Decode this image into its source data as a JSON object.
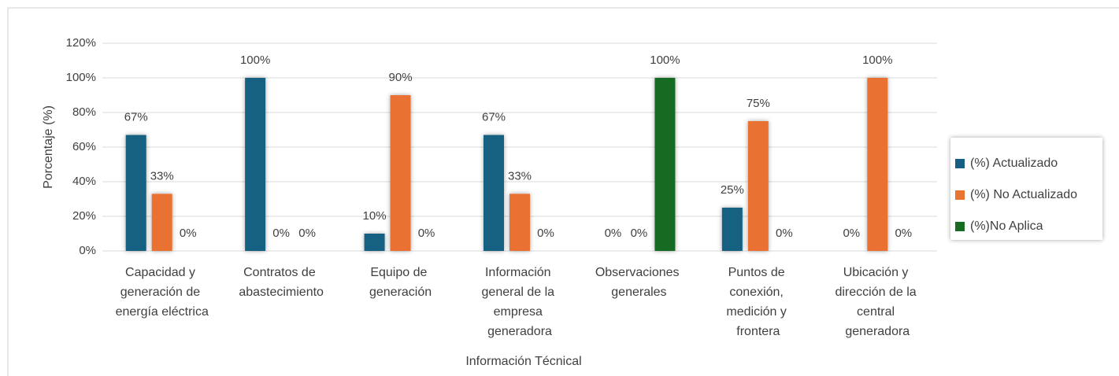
{
  "chart_data": {
    "type": "bar",
    "x_label": "Información Técnical",
    "y_label": "Porcentaje (%)",
    "categories": [
      "Capacidad y generación de energía eléctrica",
      "Contratos de abastecimiento",
      "Equipo de generación",
      "Información general de la empresa generadora",
      "Observaciones generales",
      "Puntos de conexión, medición y frontera",
      "Ubicación y dirección de la central generadora"
    ],
    "series": [
      {
        "name": "(%) Actualizado",
        "color": "#156082",
        "values": [
          67,
          100,
          10,
          67,
          0,
          25,
          0
        ],
        "value_labels": [
          "67%",
          "100%",
          "10%",
          "67%",
          "0%",
          "25%",
          "0%"
        ]
      },
      {
        "name": "(%) No Actualizado",
        "color": "#e97132",
        "values": [
          33,
          0,
          90,
          33,
          0,
          75,
          100
        ],
        "value_labels": [
          "33%",
          "0%",
          "90%",
          "33%",
          "0%",
          "75%",
          "100%"
        ]
      },
      {
        "name": "(%)No Aplica",
        "color": "#196b24",
        "values": [
          0,
          0,
          0,
          0,
          100,
          0,
          0
        ],
        "value_labels": [
          "0%",
          "0%",
          "0%",
          "0%",
          "100%",
          "0%",
          "0%"
        ]
      }
    ],
    "ylim": [
      0,
      120
    ],
    "yticks": [
      {
        "value": 0,
        "label": "0%"
      },
      {
        "value": 20,
        "label": "20%"
      },
      {
        "value": 40,
        "label": "40%"
      },
      {
        "value": 60,
        "label": "60%"
      },
      {
        "value": 80,
        "label": "80%"
      },
      {
        "value": 100,
        "label": "100%"
      },
      {
        "value": 120,
        "label": "120%"
      }
    ],
    "grid": true,
    "legend": "right"
  }
}
